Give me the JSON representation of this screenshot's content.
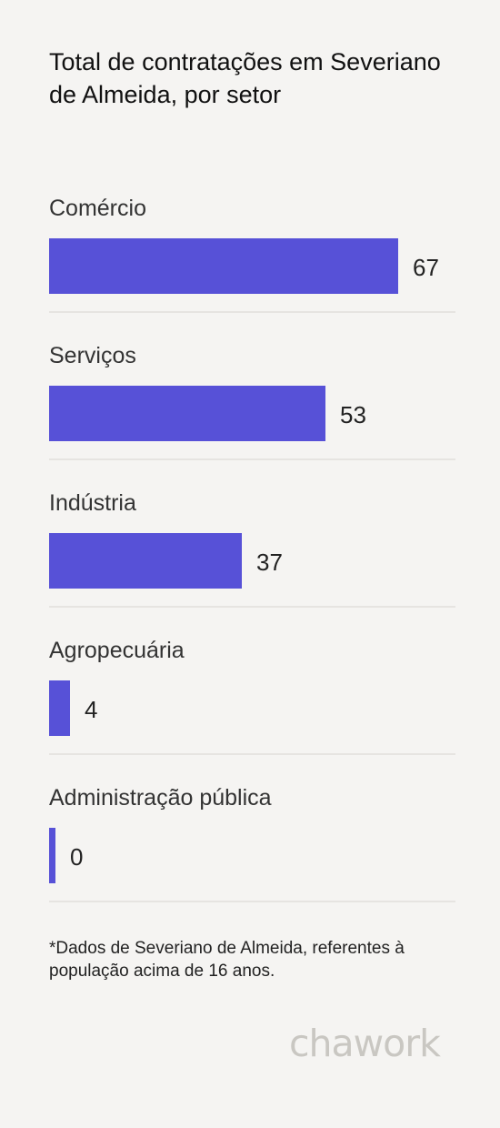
{
  "title": "Total de contratações em Severiano de Almeida, por setor",
  "footnote": "*Dados de Severiano de Almeida, referentes à população acima de 16 anos.",
  "logo": "chawork",
  "colors": {
    "bar": "#5751d7",
    "background": "#f5f4f2",
    "divider": "#e6e4e1",
    "logo": "#c9c7c2"
  },
  "chart_data": {
    "type": "bar",
    "orientation": "horizontal",
    "title": "Total de contratações em Severiano de Almeida, por setor",
    "categories": [
      "Comércio",
      "Serviços",
      "Indústria",
      "Agropecuária",
      "Administração pública"
    ],
    "values": [
      67,
      53,
      37,
      4,
      0
    ],
    "xlim": [
      0,
      78
    ],
    "grid": false,
    "legend": "none"
  }
}
